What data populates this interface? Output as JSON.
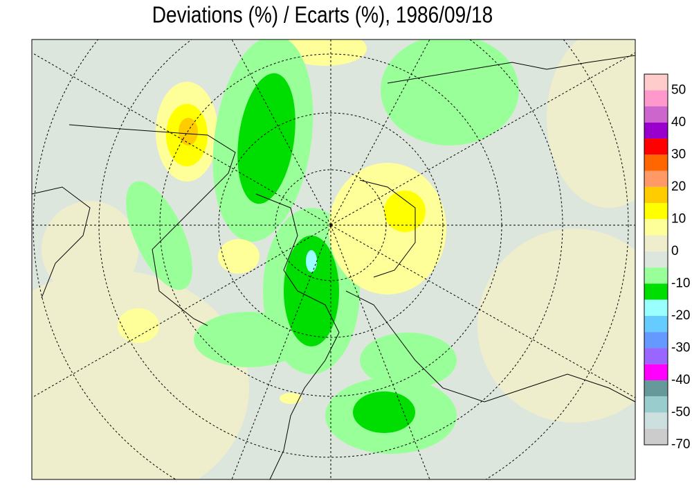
{
  "title": "Deviations (%) / Ecarts (%), 1986/09/18",
  "legend": {
    "colors": [
      "#ffcccc",
      "#ff99cc",
      "#cc66cc",
      "#9900cc",
      "#ff0000",
      "#ff6600",
      "#ff9966",
      "#ffcc00",
      "#ffff00",
      "#ffff99",
      "#eeeecc",
      "#dde6dd",
      "#99ff99",
      "#00dd00",
      "#99ffff",
      "#66ccff",
      "#6699ff",
      "#9966ff",
      "#ff00ff",
      "#669999",
      "#99cccc",
      "#cce0e0",
      "#cccccc"
    ],
    "labels": [
      50,
      40,
      30,
      20,
      10,
      0,
      -10,
      -20,
      -30,
      -40,
      -50,
      -70
    ]
  }
}
